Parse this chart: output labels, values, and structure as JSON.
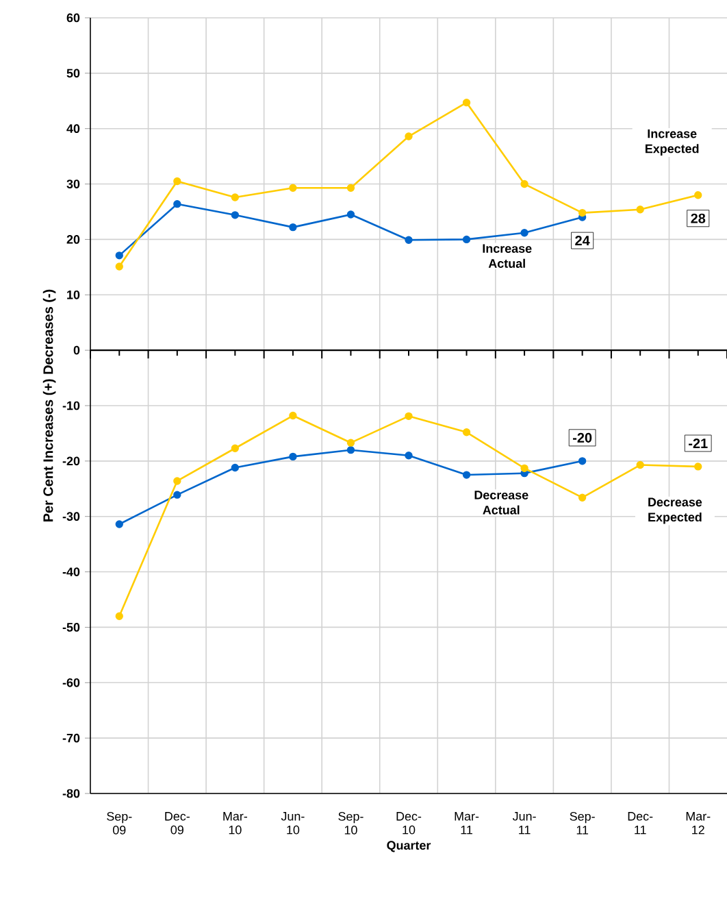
{
  "chart_data": {
    "type": "line",
    "xlabel": "Quarter",
    "ylabel": "Per Cent Increases (+) Decreases (-)",
    "categories": [
      "Sep-09",
      "Dec-09",
      "Mar-10",
      "Jun-10",
      "Sep-10",
      "Dec-10",
      "Mar-11",
      "Jun-11",
      "Sep-11",
      "Dec-11",
      "Mar-12"
    ],
    "series": [
      {
        "name": "Increase Actual",
        "color": "#0066cc",
        "values": [
          17.1,
          26.4,
          24.4,
          22.2,
          24.5,
          19.9,
          20.0,
          21.2,
          24,
          null,
          null
        ],
        "value_labels": [
          null,
          null,
          null,
          null,
          null,
          null,
          null,
          null,
          "24",
          null,
          null
        ]
      },
      {
        "name": "Increase Expected",
        "color": "#ffcc00",
        "values": [
          15.1,
          30.5,
          27.6,
          29.3,
          29.3,
          38.6,
          44.7,
          30.0,
          24.8,
          25.4,
          28
        ],
        "value_labels": [
          null,
          null,
          null,
          null,
          null,
          null,
          null,
          null,
          null,
          null,
          "28"
        ]
      },
      {
        "name": "Decrease Actual",
        "color": "#0066cc",
        "values": [
          -31.4,
          -26.1,
          -21.2,
          -19.2,
          -18.0,
          -19.0,
          -22.5,
          -22.2,
          -20,
          null,
          null
        ],
        "value_labels": [
          null,
          null,
          null,
          null,
          null,
          null,
          null,
          null,
          "-20",
          null,
          null
        ]
      },
      {
        "name": "Decrease Expected",
        "color": "#ffcc00",
        "values": [
          -48.0,
          -23.6,
          -17.7,
          -11.8,
          -16.7,
          -11.9,
          -14.8,
          -21.3,
          -26.6,
          -20.7,
          -21
        ],
        "value_labels": [
          null,
          null,
          null,
          null,
          null,
          null,
          null,
          null,
          null,
          null,
          "-21"
        ]
      }
    ],
    "ylim": [
      -80,
      60
    ],
    "yticks": [
      -80,
      -70,
      -60,
      -50,
      -40,
      -30,
      -20,
      -10,
      0,
      10,
      20,
      30,
      40,
      50,
      60
    ],
    "grid": true,
    "marker": "circle",
    "line_style": "solid"
  }
}
